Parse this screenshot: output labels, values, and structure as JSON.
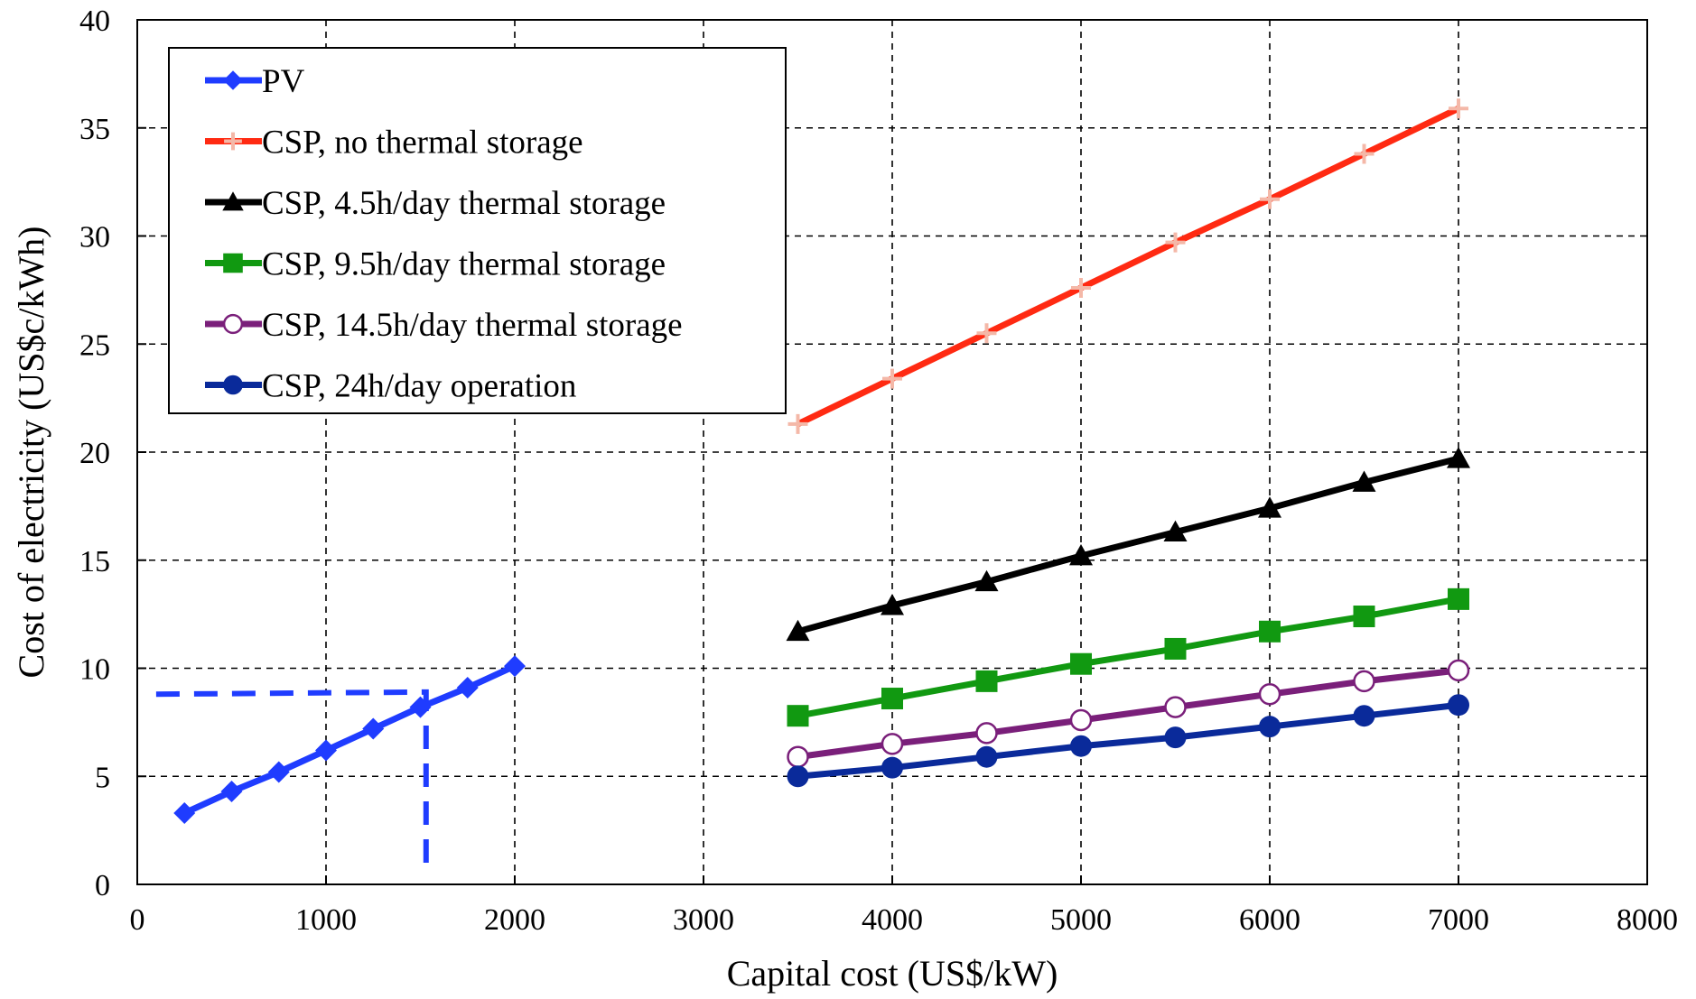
{
  "chart_data": {
    "type": "line",
    "title": "",
    "xlabel": "Capital cost (US$/kW)",
    "ylabel": "Cost of electricity (US$c/kWh)",
    "xlim": [
      0,
      8000
    ],
    "ylim": [
      0,
      40
    ],
    "x_ticks": [
      0,
      1000,
      2000,
      3000,
      4000,
      5000,
      6000,
      7000,
      8000
    ],
    "y_ticks": [
      0,
      5,
      10,
      15,
      20,
      25,
      30,
      35,
      40
    ],
    "x_tick_labels": [
      "0",
      "1000",
      "2000",
      "3000",
      "4000",
      "5000",
      "6000",
      "7000",
      "8000"
    ],
    "y_tick_labels": [
      "0",
      "5",
      "10",
      "15",
      "20",
      "25",
      "30",
      "35",
      "40"
    ],
    "grid": true,
    "legend_position": "top-left",
    "series": [
      {
        "name": "PV",
        "color": "#1f3cff",
        "marker": "diamond",
        "x": [
          250,
          500,
          750,
          1000,
          1250,
          1500,
          1750,
          2000
        ],
        "y": [
          3.3,
          4.3,
          5.2,
          6.2,
          7.2,
          8.2,
          9.1,
          10.1
        ]
      },
      {
        "name": "CSP, no thermal storage",
        "color": "#ff2a12",
        "marker": "plus",
        "x": [
          3500,
          4000,
          4500,
          5000,
          5500,
          6000,
          6500,
          7000
        ],
        "y": [
          21.3,
          23.4,
          25.5,
          27.6,
          29.7,
          31.7,
          33.8,
          35.9
        ]
      },
      {
        "name": "CSP, 4.5h/day thermal storage",
        "color": "#000000",
        "marker": "triangle",
        "x": [
          3500,
          4000,
          4500,
          5000,
          5500,
          6000,
          6500,
          7000
        ],
        "y": [
          11.7,
          12.9,
          14.0,
          15.2,
          16.3,
          17.4,
          18.6,
          19.7
        ]
      },
      {
        "name": "CSP, 9.5h/day thermal storage",
        "color": "#119911",
        "marker": "square",
        "x": [
          3500,
          4000,
          4500,
          5000,
          5500,
          6000,
          6500,
          7000
        ],
        "y": [
          7.8,
          8.6,
          9.4,
          10.2,
          10.9,
          11.7,
          12.4,
          13.2
        ]
      },
      {
        "name": "CSP, 14.5h/day thermal storage",
        "color": "#7a1f7a",
        "marker": "open-circle",
        "x": [
          3500,
          4000,
          4500,
          5000,
          5500,
          6000,
          6500,
          7000
        ],
        "y": [
          5.9,
          6.5,
          7.0,
          7.6,
          8.2,
          8.8,
          9.4,
          9.9
        ]
      },
      {
        "name": "CSP, 24h/day operation",
        "color": "#0a2a9a",
        "marker": "circle",
        "x": [
          3500,
          4000,
          4500,
          5000,
          5500,
          6000,
          6500,
          7000
        ],
        "y": [
          5.0,
          5.4,
          5.9,
          6.4,
          6.8,
          7.3,
          7.8,
          8.3
        ]
      }
    ],
    "annotations": [
      {
        "type": "dashed-guide",
        "color": "#1f3cff",
        "points": [
          [
            100,
            8.8
          ],
          [
            1530,
            8.9
          ],
          [
            1530,
            0.7
          ]
        ]
      }
    ]
  }
}
